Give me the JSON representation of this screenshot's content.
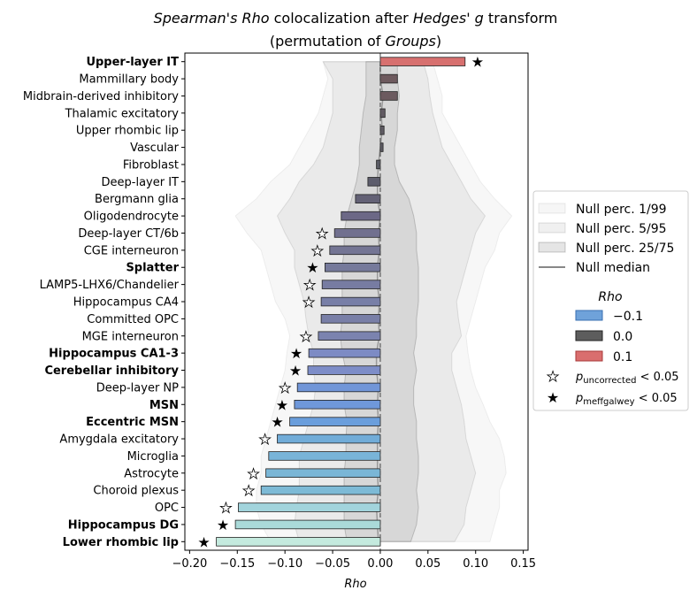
{
  "chart_data": {
    "type": "bar",
    "orientation": "horizontal",
    "title_line1": {
      "italic1": "Spearman's Rho",
      "plain1": " colocalization after ",
      "italic2": "Hedges' g",
      "plain2": " transform"
    },
    "title_line2": {
      "plain1": "(permutation of ",
      "italic1": "Groups",
      "plain2": ")"
    },
    "xlabel": "Rho",
    "xlim": [
      -0.205,
      0.155
    ],
    "xticks": [
      -0.2,
      -0.15,
      -0.1,
      -0.05,
      0.0,
      0.05,
      0.1,
      0.15
    ],
    "xtick_labels": [
      "−0.20",
      "−0.15",
      "−0.10",
      "−0.05",
      "0.00",
      "0.05",
      "0.10",
      "0.15"
    ],
    "categories": [
      "Upper-layer IT",
      "Mammillary body",
      "Midbrain-derived inhibitory",
      "Thalamic excitatory",
      "Upper rhombic lip",
      "Vascular",
      "Fibroblast",
      "Deep-layer IT",
      "Bergmann glia",
      "Oligodendrocyte",
      "Deep-layer CT/6b",
      "CGE interneuron",
      "Splatter",
      "LAMP5-LHX6/Chandelier",
      "Hippocampus CA4",
      "Committed OPC",
      "MGE interneuron",
      "Hippocampus CA1-3",
      "Cerebellar inhibitory",
      "Deep-layer NP",
      "MSN",
      "Eccentric MSN",
      "Amygdala excitatory",
      "Microglia",
      "Astrocyte",
      "Choroid plexus",
      "OPC",
      "Hippocampus DG",
      "Lower rhombic lip"
    ],
    "values": [
      0.089,
      0.018,
      0.018,
      0.005,
      0.004,
      0.003,
      -0.004,
      -0.013,
      -0.026,
      -0.041,
      -0.048,
      -0.053,
      -0.058,
      -0.061,
      -0.062,
      -0.062,
      -0.065,
      -0.075,
      -0.076,
      -0.087,
      -0.09,
      -0.095,
      -0.108,
      -0.117,
      -0.12,
      -0.125,
      -0.149,
      -0.152,
      -0.172
    ],
    "bold": [
      true,
      false,
      false,
      false,
      false,
      false,
      false,
      false,
      false,
      false,
      false,
      false,
      true,
      false,
      false,
      false,
      false,
      true,
      true,
      false,
      true,
      true,
      false,
      false,
      false,
      false,
      false,
      true,
      true
    ],
    "significance": [
      "meff",
      "none",
      "none",
      "none",
      "none",
      "none",
      "none",
      "none",
      "none",
      "none",
      "uncorrected",
      "uncorrected",
      "meff",
      "uncorrected",
      "uncorrected",
      "none",
      "uncorrected",
      "meff",
      "meff",
      "uncorrected",
      "meff",
      "meff",
      "uncorrected",
      "none",
      "uncorrected",
      "uncorrected",
      "uncorrected",
      "meff",
      "meff"
    ],
    "bar_colors": [
      "#d7706f",
      "#6e5a5e",
      "#6c5a5f",
      "#615a62",
      "#5f5b63",
      "#5d5b64",
      "#5a5b65",
      "#5d5d6c",
      "#636175",
      "#6c6886",
      "#71708f",
      "#747594",
      "#767a9b",
      "#777ca2",
      "#787fa7",
      "#797fa7",
      "#7b83af",
      "#7d8bc4",
      "#7d8dc8",
      "#7196d8",
      "#6f98da",
      "#6a9edc",
      "#71acd8",
      "#79b4d8",
      "#7ab6d6",
      "#7dbad6",
      "#a2d4dc",
      "#aadad9",
      "#c4eade"
    ],
    "null_median": [
      0.0,
      0.0,
      0.003,
      0.001,
      0.002,
      0.0,
      -0.002,
      -0.003,
      -0.003,
      0.0,
      -0.002,
      -0.001,
      -0.003,
      -0.003,
      -0.001,
      -0.002,
      -0.001,
      -0.004,
      -0.004,
      -0.002,
      -0.003,
      -0.002,
      -0.003,
      -0.003,
      -0.003,
      -0.002,
      -0.004,
      -0.003,
      -0.002
    ],
    "null_p25": [
      -0.015,
      -0.015,
      -0.015,
      -0.018,
      -0.02,
      -0.022,
      -0.022,
      -0.025,
      -0.03,
      -0.035,
      -0.038,
      -0.038,
      -0.04,
      -0.04,
      -0.04,
      -0.04,
      -0.042,
      -0.04,
      -0.036,
      -0.038,
      -0.038,
      -0.035,
      -0.036,
      -0.036,
      -0.038,
      -0.038,
      -0.038,
      -0.038,
      -0.035
    ],
    "null_p75": [
      0.018,
      0.018,
      0.02,
      0.018,
      0.018,
      0.015,
      0.015,
      0.02,
      0.03,
      0.035,
      0.038,
      0.038,
      0.04,
      0.04,
      0.04,
      0.038,
      0.038,
      0.035,
      0.038,
      0.035,
      0.035,
      0.038,
      0.038,
      0.04,
      0.04,
      0.038,
      0.04,
      0.038,
      0.032
    ],
    "null_p5": [
      -0.06,
      -0.05,
      -0.05,
      -0.05,
      -0.055,
      -0.06,
      -0.07,
      -0.085,
      -0.095,
      -0.108,
      -0.1,
      -0.09,
      -0.09,
      -0.085,
      -0.08,
      -0.078,
      -0.075,
      -0.07,
      -0.07,
      -0.068,
      -0.07,
      -0.075,
      -0.08,
      -0.085,
      -0.085,
      -0.085,
      -0.088,
      -0.09,
      -0.085
    ],
    "null_p95": [
      0.045,
      0.05,
      0.052,
      0.055,
      0.06,
      0.065,
      0.075,
      0.085,
      0.095,
      0.11,
      0.1,
      0.095,
      0.09,
      0.085,
      0.08,
      0.082,
      0.085,
      0.075,
      0.075,
      0.08,
      0.085,
      0.088,
      0.09,
      0.095,
      0.1,
      0.095,
      0.09,
      0.088,
      0.078
    ],
    "null_p1": [
      -0.06,
      -0.055,
      -0.06,
      -0.065,
      -0.075,
      -0.085,
      -0.095,
      -0.115,
      -0.13,
      -0.152,
      -0.14,
      -0.125,
      -0.12,
      -0.115,
      -0.11,
      -0.1,
      -0.095,
      -0.098,
      -0.1,
      -0.105,
      -0.11,
      -0.115,
      -0.12,
      -0.125,
      -0.125,
      -0.13,
      -0.13,
      -0.125,
      -0.115
    ],
    "null_p99": [
      0.055,
      0.06,
      0.065,
      0.065,
      0.075,
      0.085,
      0.095,
      0.105,
      0.12,
      0.138,
      0.125,
      0.12,
      0.11,
      0.105,
      0.1,
      0.095,
      0.09,
      0.092,
      0.095,
      0.1,
      0.108,
      0.115,
      0.125,
      0.13,
      0.132,
      0.125,
      0.125,
      0.12,
      0.115
    ],
    "legend": {
      "position": "right",
      "null_entries": [
        "Null perc. 1/99",
        "Null perc. 5/95",
        "Null perc. 25/75",
        "Null median"
      ],
      "colorbar_title": "Rho",
      "color_entries": [
        {
          "label": "−0.1",
          "color": "#6fa2da"
        },
        {
          "label": "0.0",
          "color": "#5d5d5d"
        },
        {
          "label": "0.1",
          "color": "#d96e6e"
        }
      ],
      "sig_uncorrected": {
        "p": "p",
        "sub": "uncorrected",
        "rest": " < 0.05"
      },
      "sig_meff": {
        "p": "p",
        "sub": "meffgalwey",
        "rest": " < 0.05"
      }
    },
    "grid": false
  }
}
